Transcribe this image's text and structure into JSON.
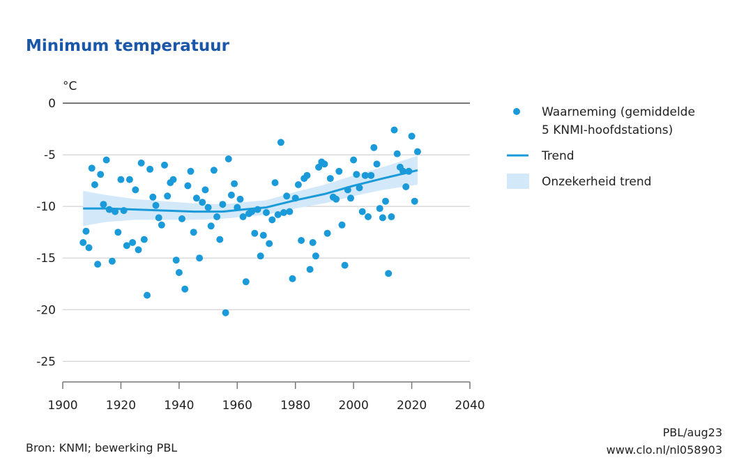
{
  "chart_data": {
    "type": "scatter",
    "title": "Minimum temperatuur",
    "ylabel": "°C",
    "xlabel": "",
    "xlim": [
      1900,
      2040
    ],
    "ylim": [
      -27,
      0
    ],
    "x_ticks": [
      "1900",
      "1920",
      "1940",
      "1960",
      "1980",
      "2000",
      "2020",
      "2040"
    ],
    "y_ticks": [
      "0",
      "-5",
      "-10",
      "-15",
      "-20",
      "-25"
    ],
    "grid": true,
    "legend_position": "right",
    "legend": {
      "observation_line1": "Waarneming (gemiddelde",
      "observation_line2": "5 KNMI-hoofdstations)",
      "trend": "Trend",
      "uncertainty": "Onzekerheid trend"
    },
    "colors": {
      "points": "#1a9ad9",
      "trend": "#1a9ad9",
      "band": "#d3e8f8",
      "title": "#1a57a8",
      "grid": "#c8c8c8"
    },
    "series": [
      {
        "name": "Waarneming (gemiddelde 5 KNMI-hoofdstations)",
        "x": [
          1907,
          1908,
          1909,
          1910,
          1911,
          1912,
          1913,
          1914,
          1915,
          1916,
          1917,
          1918,
          1919,
          1920,
          1921,
          1922,
          1923,
          1924,
          1925,
          1926,
          1927,
          1928,
          1929,
          1930,
          1931,
          1932,
          1933,
          1934,
          1935,
          1936,
          1937,
          1938,
          1939,
          1940,
          1941,
          1942,
          1943,
          1944,
          1945,
          1946,
          1947,
          1948,
          1949,
          1950,
          1951,
          1952,
          1953,
          1954,
          1955,
          1956,
          1957,
          1958,
          1959,
          1960,
          1961,
          1962,
          1963,
          1964,
          1965,
          1966,
          1967,
          1968,
          1969,
          1970,
          1971,
          1972,
          1973,
          1974,
          1975,
          1976,
          1977,
          1978,
          1979,
          1980,
          1981,
          1982,
          1983,
          1984,
          1985,
          1986,
          1987,
          1988,
          1989,
          1990,
          1991,
          1992,
          1993,
          1994,
          1995,
          1996,
          1997,
          1998,
          1999,
          2000,
          2001,
          2002,
          2003,
          2004,
          2005,
          2006,
          2007,
          2008,
          2009,
          2010,
          2011,
          2012,
          2013,
          2014,
          2015,
          2016,
          2017,
          2018,
          2019,
          2020,
          2021,
          2022
        ],
        "y": [
          -13.5,
          -12.4,
          -14.0,
          -6.3,
          -7.9,
          -15.6,
          -6.9,
          -9.8,
          -5.5,
          -10.3,
          -15.3,
          -10.5,
          -12.5,
          -7.4,
          -10.4,
          -13.8,
          -7.4,
          -13.5,
          -8.4,
          -14.2,
          -5.8,
          -13.2,
          -18.6,
          -6.4,
          -9.1,
          -9.9,
          -11.1,
          -11.8,
          -6.0,
          -9.0,
          -7.7,
          -7.4,
          -15.2,
          -16.4,
          -11.2,
          -18.0,
          -8.0,
          -6.6,
          -12.5,
          -9.2,
          -15.0,
          -9.6,
          -8.4,
          -10.1,
          -11.9,
          -6.5,
          -11.0,
          -13.2,
          -9.8,
          -20.3,
          -5.4,
          -8.9,
          -7.8,
          -10.1,
          -9.3,
          -11.0,
          -17.3,
          -10.7,
          -10.5,
          -12.6,
          -10.3,
          -14.8,
          -12.8,
          -10.6,
          -13.6,
          -11.3,
          -7.7,
          -10.8,
          -3.8,
          -10.6,
          -9.0,
          -10.5,
          -17.0,
          -9.2,
          -7.9,
          -13.3,
          -7.3,
          -7.0,
          -16.1,
          -13.5,
          -14.8,
          -6.2,
          -5.7,
          -5.9,
          -12.6,
          -7.3,
          -9.1,
          -9.3,
          -6.6,
          -11.8,
          -15.7,
          -8.4,
          -9.2,
          -5.5,
          -6.9,
          -8.2,
          -10.5,
          -7.0,
          -11.0,
          -7.0,
          -4.3,
          -5.9,
          -10.2,
          -11.1,
          -9.5,
          -16.5,
          -11.0,
          -2.6,
          -4.9,
          -6.2,
          -6.6,
          -8.1,
          -6.6,
          -3.2,
          -9.5,
          -4.7
        ]
      },
      {
        "name": "Trend",
        "x": [
          1907,
          1915,
          1925,
          1935,
          1945,
          1955,
          1962,
          1970,
          1980,
          1990,
          2000,
          2010,
          2022
        ],
        "y": [
          -10.2,
          -10.2,
          -10.3,
          -10.4,
          -10.5,
          -10.5,
          -10.3,
          -10.1,
          -9.4,
          -8.8,
          -8.0,
          -7.3,
          -6.5
        ]
      },
      {
        "name": "Onzekerheid trend",
        "x": [
          1907,
          1915,
          1925,
          1935,
          1945,
          1955,
          1962,
          1970,
          1980,
          1990,
          2000,
          2010,
          2022
        ],
        "lower": [
          -11.9,
          -11.5,
          -11.3,
          -11.3,
          -11.3,
          -11.2,
          -11.0,
          -10.8,
          -10.2,
          -9.7,
          -9.0,
          -8.4,
          -7.9
        ],
        "upper": [
          -8.5,
          -8.9,
          -9.3,
          -9.5,
          -9.7,
          -9.8,
          -9.6,
          -9.4,
          -8.6,
          -7.9,
          -7.0,
          -6.2,
          -5.1
        ]
      }
    ]
  },
  "footer": {
    "source": "Bron: KNMI; bewerking PBL",
    "code": "PBL/aug23",
    "url": "www.clo.nl/nl058903"
  }
}
